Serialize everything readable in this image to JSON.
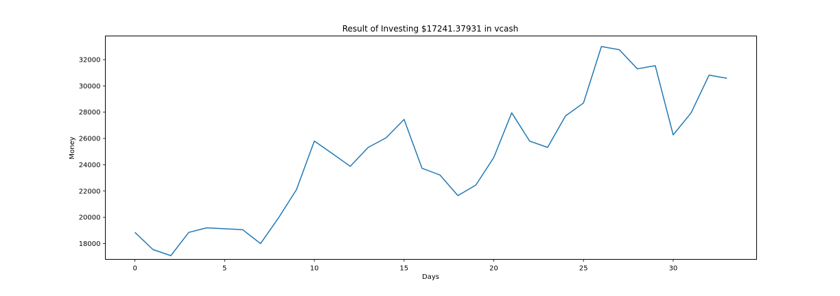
{
  "chart_data": {
    "type": "line",
    "title": "Result of Investing $17241.37931 in vcash",
    "xlabel": "Days",
    "ylabel": "Money",
    "xlim": [
      -1.65,
      34.65
    ],
    "ylim": [
      16800,
      33800
    ],
    "xticks": [
      0,
      5,
      10,
      15,
      20,
      25,
      30
    ],
    "yticks": [
      18000,
      20000,
      22000,
      24000,
      26000,
      28000,
      30000,
      32000
    ],
    "grid": false,
    "color": "#1f77b4",
    "series": [
      {
        "x": [
          0,
          1,
          2,
          3,
          4,
          5,
          6,
          7,
          8,
          9,
          10,
          11,
          12,
          13,
          14,
          15,
          16,
          17,
          18,
          19,
          20,
          21,
          22,
          23,
          24,
          25,
          26,
          27,
          28,
          29,
          30,
          31,
          32,
          33
        ],
        "values": [
          18850,
          17550,
          17080,
          18850,
          19200,
          19130,
          19060,
          18000,
          19950,
          22100,
          25800,
          24850,
          23880,
          25320,
          26050,
          27450,
          23730,
          23220,
          21650,
          22450,
          24550,
          27950,
          25800,
          25320,
          27720,
          28700,
          33000,
          32750,
          31300,
          31540,
          26270,
          27950,
          30820,
          30580
        ]
      }
    ]
  }
}
